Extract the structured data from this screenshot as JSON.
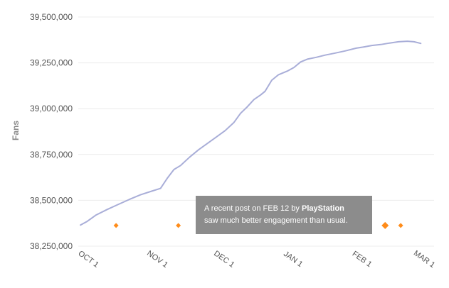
{
  "chart_data": {
    "type": "line",
    "title": "",
    "xlabel": "",
    "ylabel": "Fans",
    "y_ticks": [
      "39,500,000",
      "39,250,000",
      "39,000,000",
      "38,750,000",
      "38,500,000",
      "38,250,000"
    ],
    "x_ticks": [
      "OCT 1",
      "NOV 1",
      "DEC 1",
      "JAN 1",
      "FEB 1",
      "MAR 1"
    ],
    "ylim": [
      38250000,
      39500000
    ],
    "xlim": [
      "2014-09-27",
      "2015-03-06"
    ],
    "grid": true,
    "line_color": "#a9aed8",
    "marker_color": "#ff8c1a",
    "series": [
      {
        "x": [
          "2014-09-28",
          "2014-10-01",
          "2014-10-05",
          "2014-10-10",
          "2014-10-15",
          "2014-10-20",
          "2014-10-25",
          "2014-10-30",
          "2014-11-03",
          "2014-11-06",
          "2014-11-09",
          "2014-11-12",
          "2014-11-16",
          "2014-11-20",
          "2014-11-24",
          "2014-11-28",
          "2014-12-02",
          "2014-12-06",
          "2014-12-09",
          "2014-12-12",
          "2014-12-15",
          "2014-12-18",
          "2014-12-20",
          "2014-12-23",
          "2014-12-26",
          "2014-12-28",
          "2014-12-30",
          "2015-01-02",
          "2015-01-05",
          "2015-01-08",
          "2015-01-12",
          "2015-01-16",
          "2015-01-20",
          "2015-01-25",
          "2015-01-30",
          "2015-02-03",
          "2015-02-06",
          "2015-02-10",
          "2015-02-14",
          "2015-02-18",
          "2015-02-22",
          "2015-02-25",
          "2015-02-28"
        ],
        "values": [
          38365000,
          38385000,
          38420000,
          38450000,
          38478000,
          38505000,
          38530000,
          38550000,
          38565000,
          38620000,
          38668000,
          38690000,
          38735000,
          38775000,
          38810000,
          38845000,
          38880000,
          38925000,
          38975000,
          39010000,
          39050000,
          39075000,
          39095000,
          39155000,
          39185000,
          39195000,
          39205000,
          39225000,
          39255000,
          39270000,
          39280000,
          39292000,
          39302000,
          39315000,
          39330000,
          39338000,
          39345000,
          39350000,
          39358000,
          39365000,
          39368000,
          39365000,
          39356000
        ]
      }
    ],
    "markers": [
      {
        "x": "2014-10-14",
        "size": "small"
      },
      {
        "x": "2014-11-11",
        "size": "small"
      },
      {
        "x": "2015-02-12",
        "size": "large"
      },
      {
        "x": "2015-02-19",
        "size": "small"
      }
    ],
    "annotation": {
      "prefix": "A recent post on FEB 12 by",
      "brand": "PlayStation",
      "suffix": "saw much better engagement than usual."
    }
  }
}
